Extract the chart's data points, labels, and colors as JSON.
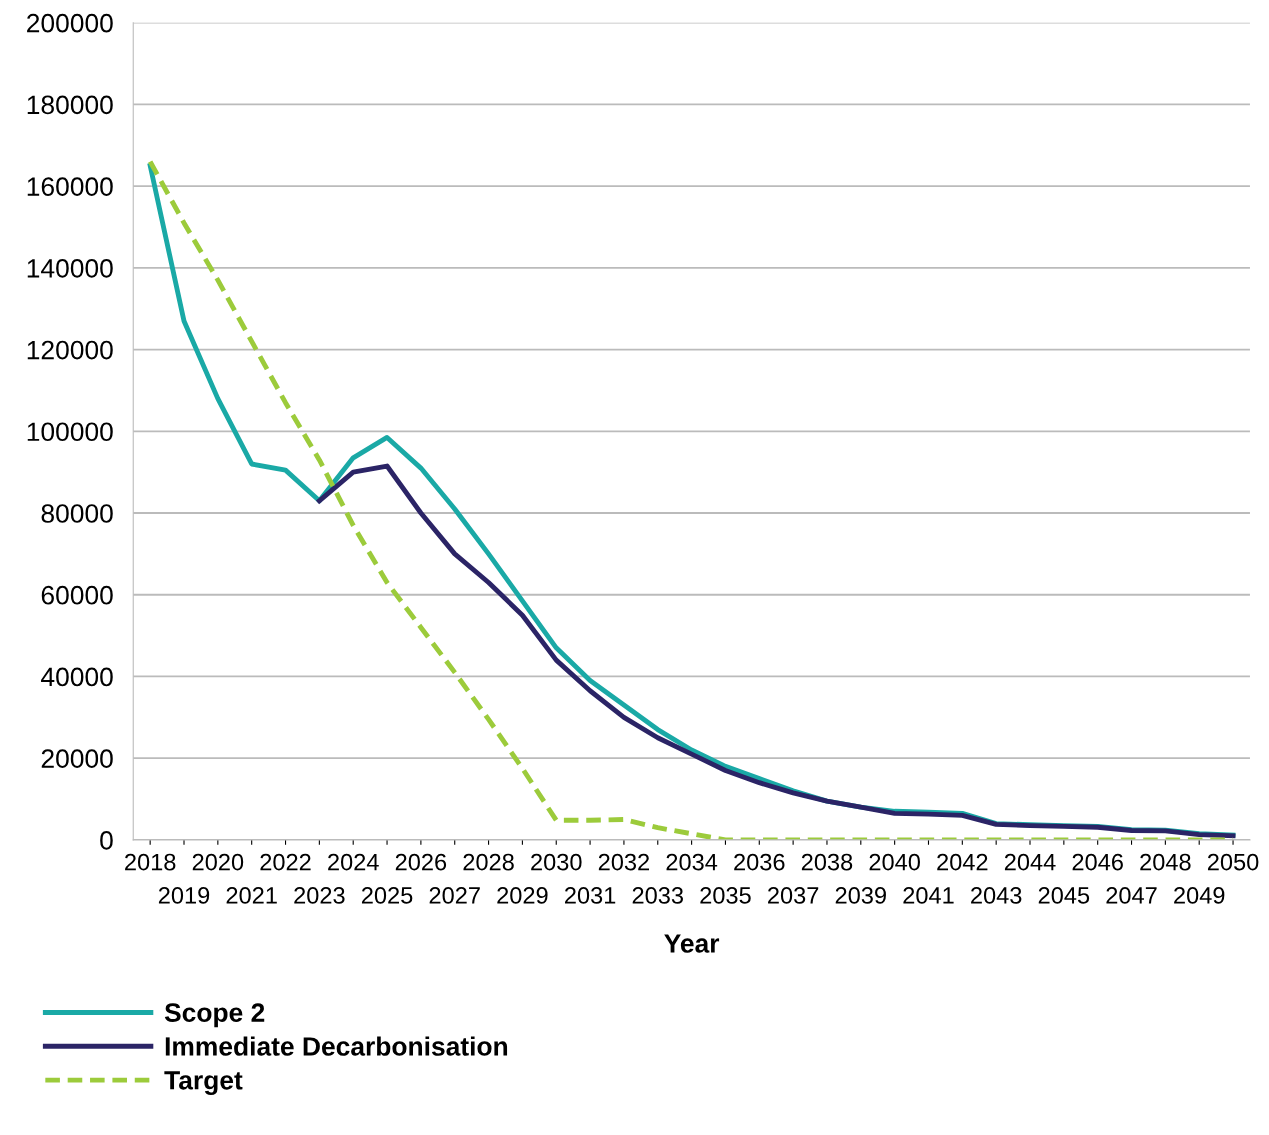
{
  "chart_data": {
    "type": "line",
    "xlabel": "Year",
    "categories": [
      "2018",
      "2019",
      "2020",
      "2021",
      "2022",
      "2023",
      "2024",
      "2025",
      "2026",
      "2027",
      "2028",
      "2029",
      "2030",
      "2031",
      "2032",
      "2033",
      "2034",
      "2035",
      "2036",
      "2037",
      "2038",
      "2039",
      "2040",
      "2041",
      "2042",
      "2043",
      "2044",
      "2045",
      "2046",
      "2047",
      "2048",
      "2049",
      "2050"
    ],
    "series": [
      {
        "name": "Scope 2",
        "color": "#1aa9a6",
        "line_style": "solid",
        "values": [
          165000,
          127000,
          108000,
          92000,
          90500,
          83000,
          93500,
          98500,
          91000,
          81000,
          70000,
          58500,
          47000,
          39000,
          33000,
          27000,
          22000,
          18000,
          15000,
          12000,
          9500,
          8000,
          7000,
          6800,
          6500,
          4000,
          3700,
          3500,
          3300,
          2500,
          2400,
          1500,
          1200
        ]
      },
      {
        "name": "Immediate Decarbonisation",
        "color": "#2b2466",
        "line_style": "solid",
        "values": [
          null,
          null,
          null,
          null,
          null,
          83000,
          90000,
          91500,
          80000,
          70000,
          63000,
          55000,
          44000,
          36500,
          30000,
          25000,
          21000,
          17000,
          14000,
          11500,
          9500,
          8000,
          6500,
          6300,
          6000,
          3800,
          3500,
          3300,
          3100,
          2300,
          2200,
          1300,
          1000
        ]
      },
      {
        "name": "Target",
        "color": "#9ccb3b",
        "line_style": "dashed",
        "values": [
          166000,
          151000,
          137000,
          122000,
          107000,
          93000,
          77000,
          63000,
          52000,
          41000,
          29500,
          17500,
          4800,
          4800,
          5000,
          3000,
          1500,
          0,
          0,
          0,
          0,
          0,
          0,
          0,
          0,
          0,
          0,
          0,
          0,
          0,
          0,
          0,
          0
        ]
      }
    ],
    "ylim": [
      0,
      200000
    ],
    "yticks": [
      0,
      20000,
      40000,
      60000,
      80000,
      100000,
      120000,
      140000,
      160000,
      180000,
      200000
    ],
    "grid": "y",
    "legend": "bottom left",
    "marker": "none"
  }
}
